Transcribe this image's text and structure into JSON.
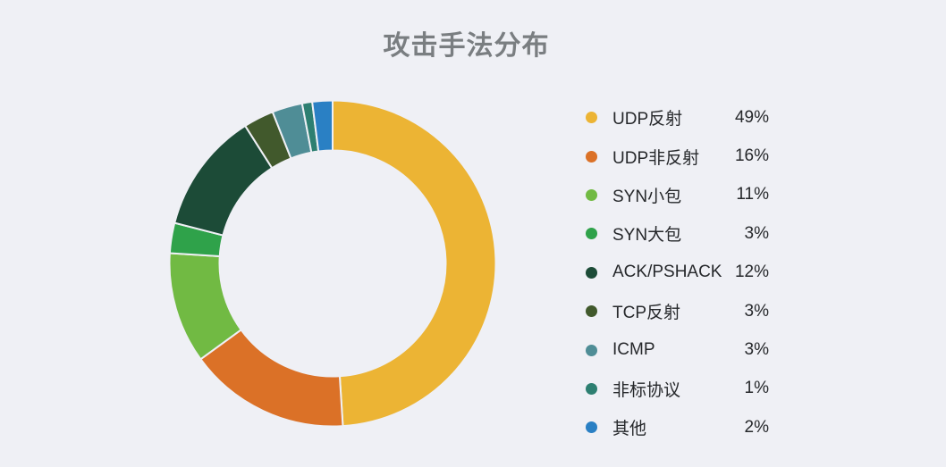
{
  "page": {
    "background_color": "#EFF0F5",
    "title": "攻击手法分布",
    "title_color": "#7A7E81",
    "text_color": "#26282B"
  },
  "chart_data": {
    "type": "pie",
    "variant": "donut",
    "title": "攻击手法分布",
    "start_angle_deg": 0,
    "direction": "clockwise",
    "legend_position": "right",
    "value_suffix": "%",
    "gap_stroke_color": "#EFF0F5",
    "series": [
      {
        "label": "UDP反射",
        "value": 49,
        "color": "#ECB434"
      },
      {
        "label": "UDP非反射",
        "value": 16,
        "color": "#DB7127"
      },
      {
        "label": "SYN小包",
        "value": 11,
        "color": "#71BA43"
      },
      {
        "label": "SYN大包",
        "value": 3,
        "color": "#2FA24A"
      },
      {
        "label": "ACK/PSHACK",
        "value": 12,
        "color": "#1C4B37"
      },
      {
        "label": "TCP反射",
        "value": 3,
        "color": "#41592C"
      },
      {
        "label": "ICMP",
        "value": 3,
        "color": "#4F8D96"
      },
      {
        "label": "非标协议",
        "value": 1,
        "color": "#2D7F71"
      },
      {
        "label": "其他",
        "value": 2,
        "color": "#2A80C4"
      }
    ]
  }
}
